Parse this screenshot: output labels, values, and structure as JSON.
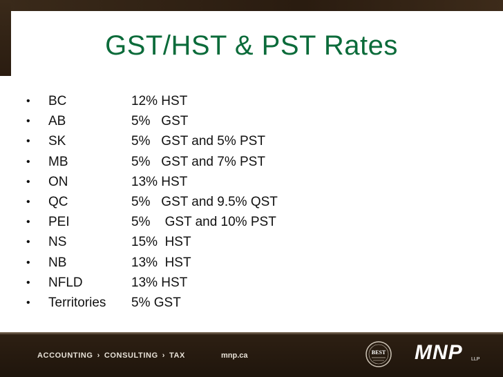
{
  "slide": {
    "title": "GST/HST & PST Rates",
    "rows": [
      {
        "bullet": "•",
        "province": "BC",
        "rate": "12% HST"
      },
      {
        "bullet": "•",
        "province": "AB",
        "rate": "5%   GST"
      },
      {
        "bullet": "•",
        "province": "SK",
        "rate": "5%   GST and 5% PST"
      },
      {
        "bullet": "•",
        "province": "MB",
        "rate": "5%   GST and 7% PST"
      },
      {
        "bullet": "•",
        "province": "ON",
        "rate": "13% HST"
      },
      {
        "bullet": "•",
        "province": "QC",
        "rate": "5%   GST and 9.5% QST"
      },
      {
        "bullet": "•",
        "province": "PEI",
        "rate": "5%    GST and 10% PST"
      },
      {
        "bullet": "•",
        "province": "NS",
        "rate": "15%  HST"
      },
      {
        "bullet": "•",
        "province": "NB",
        "rate": "13%  HST"
      },
      {
        "bullet": "•",
        "province": "NFLD",
        "rate": "13% HST"
      },
      {
        "bullet": "•",
        "province": "Territories",
        "rate": "5% GST"
      }
    ]
  },
  "footer": {
    "tagline_1": "ACCOUNTING",
    "tagline_2": "CONSULTING",
    "tagline_3": "TAX",
    "separator": "›",
    "website": "mnp.ca",
    "logo": "MNP",
    "logo_suffix": "LLP",
    "badge_text": "BEST"
  },
  "colors": {
    "title": "#0b6b3a",
    "frame": "#2e2013",
    "footer_text": "#e8e2d8"
  }
}
